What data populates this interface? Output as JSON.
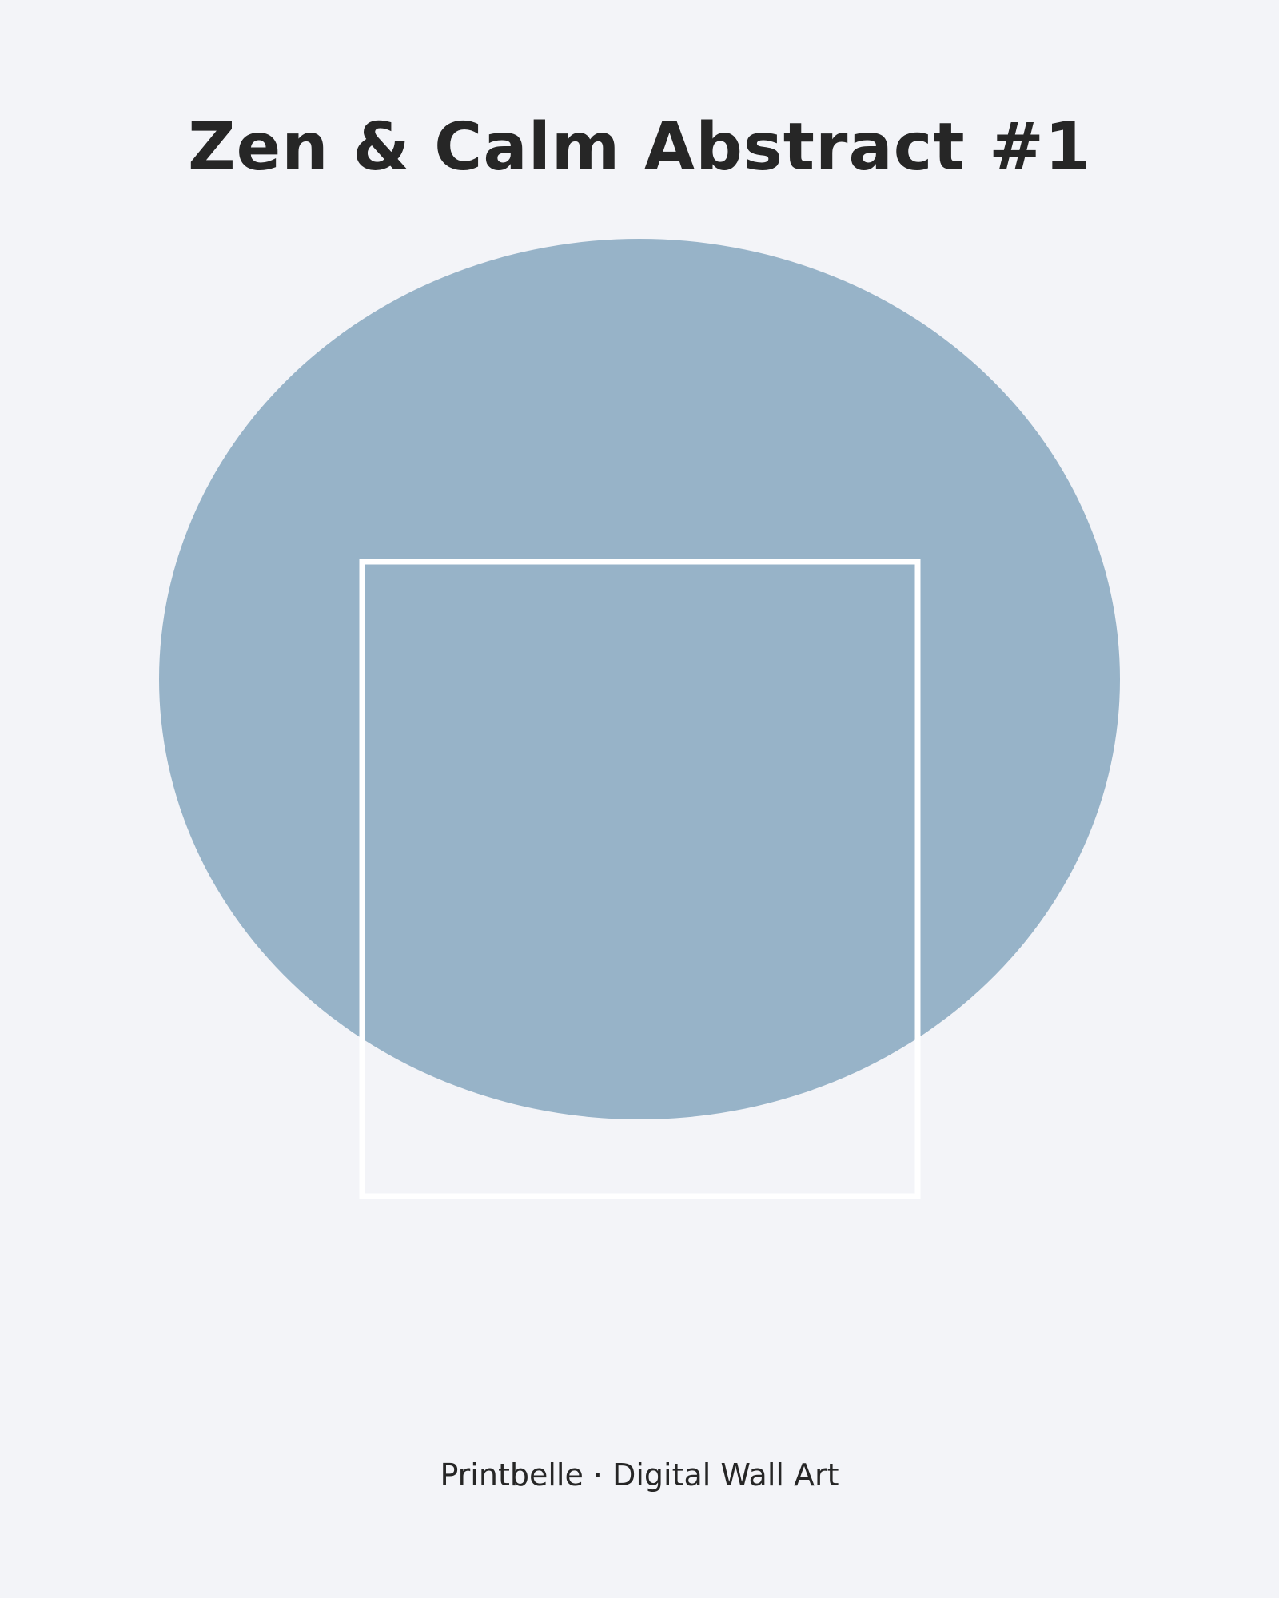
{
  "poster": {
    "title": "Zen & Calm Abstract #1",
    "caption": "Printbelle · Digital Wall Art"
  },
  "colors": {
    "background": "#f3f4f8",
    "circle": "#97b3c8",
    "square_outline": "#ffffff",
    "text": "#262626"
  }
}
